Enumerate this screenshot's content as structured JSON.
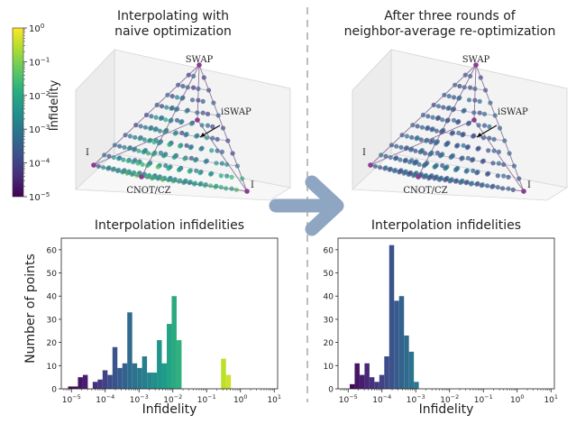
{
  "left_panel": {
    "title_line1": "Interpolating with",
    "title_line2": "naive optimization"
  },
  "right_panel": {
    "title_line1": "After three rounds of",
    "title_line2": "neighbor-average re-optimization"
  },
  "colorbar": {
    "label": "Infidelity",
    "ticks": [
      "10^0",
      "10^-1",
      "10^-2",
      "10^-3",
      "10^-4",
      "10^-5"
    ],
    "colormap": "viridis"
  },
  "vertex_labels": {
    "swap": "SWAP",
    "iswap": "iSWAP",
    "identity_left": "I",
    "identity_right": "I",
    "cnot": "CNOT/CZ"
  },
  "arrow": {
    "color": "#8fa6c2"
  },
  "chart_data": [
    {
      "type": "bar",
      "title": "Interpolation infidelities",
      "xlabel": "Infidelity",
      "ylabel": "Number of points",
      "xscale": "log",
      "xlim_log10": [
        -5.3,
        1.1
      ],
      "ylim": [
        0,
        65
      ],
      "yticks": [
        "0",
        "10",
        "20",
        "30",
        "40",
        "50",
        "60"
      ],
      "xticks": [
        "10^-5",
        "10^-4",
        "10^-3",
        "10^-2",
        "10^-1",
        "10^0",
        "10^1"
      ],
      "bin_width_log10": 0.146,
      "bin_starts_log10": [
        -5.1,
        -4.954,
        -4.808,
        -4.662,
        -4.516,
        -4.37,
        -4.224,
        -4.078,
        -3.932,
        -3.786,
        -3.64,
        -3.494,
        -3.348,
        -3.202,
        -3.056,
        -2.91,
        -2.764,
        -2.618,
        -2.472,
        -2.326,
        -2.18,
        -2.034,
        -1.888,
        -1.742,
        -1.596,
        -1.45,
        -1.304,
        -1.158,
        -1.012,
        -0.866,
        -0.72,
        -0.574,
        -0.428,
        -0.282,
        -0.136
      ],
      "values": [
        1,
        1,
        5,
        6,
        0,
        3,
        4,
        8,
        6,
        18,
        9,
        11,
        33,
        11,
        9,
        14,
        7,
        7,
        21,
        11,
        28,
        40,
        21,
        0,
        0,
        0,
        0,
        0,
        0,
        0,
        0,
        13,
        6,
        0,
        0
      ]
    },
    {
      "type": "bar",
      "title": "Interpolation infidelities",
      "xlabel": "Infidelity",
      "xscale": "log",
      "xlim_log10": [
        -5.3,
        1.1
      ],
      "ylim": [
        0,
        65
      ],
      "yticks": [
        "0",
        "10",
        "20",
        "30",
        "40",
        "50",
        "60"
      ],
      "xticks": [
        "10^-5",
        "10^-4",
        "10^-3",
        "10^-2",
        "10^-1",
        "10^0",
        "10^1"
      ],
      "bin_width_log10": 0.146,
      "bin_starts_log10": [
        -5.1,
        -4.954,
        -4.808,
        -4.662,
        -4.516,
        -4.37,
        -4.224,
        -4.078,
        -3.932,
        -3.786,
        -3.64,
        -3.494,
        -3.348,
        -3.202,
        -3.056,
        -2.91
      ],
      "values": [
        0,
        2,
        11,
        6,
        11,
        5,
        3,
        6,
        14,
        62,
        38,
        40,
        23,
        16,
        3,
        0
      ]
    }
  ]
}
